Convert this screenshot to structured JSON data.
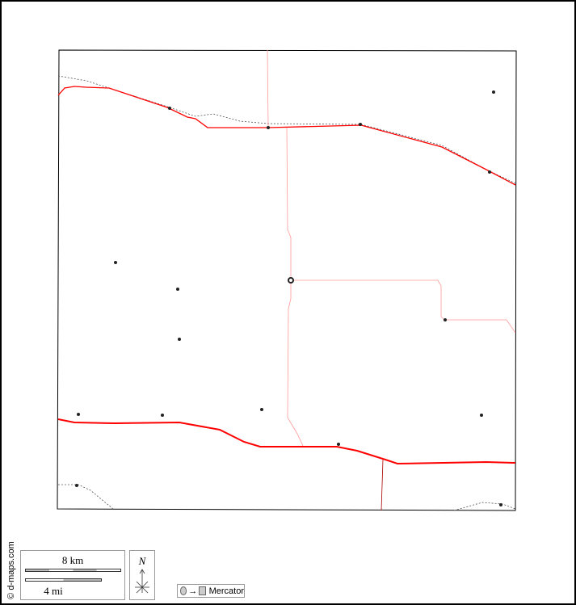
{
  "credit": "© d-maps.com",
  "scale": {
    "km_label": "8 km",
    "mi_label": "4 mi"
  },
  "north_label": "N",
  "projection": {
    "label": "Mercator",
    "arrow": "→"
  },
  "colors": {
    "major_road": "#ff0000",
    "minor_road": "#ff9999",
    "boundary": "#555555",
    "frame": "#000000"
  }
}
